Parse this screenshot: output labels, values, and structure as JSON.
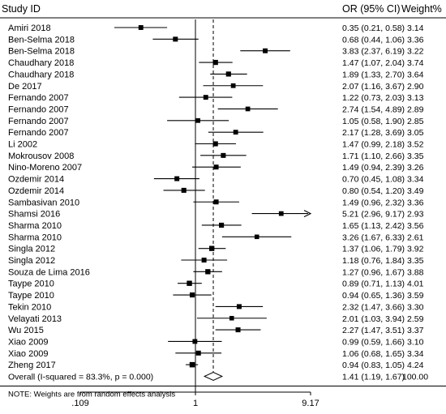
{
  "chart_data": {
    "type": "forest",
    "headers": {
      "study": "Study ID",
      "or": "OR (95% CI)",
      "weight": "Weight%"
    },
    "x_scale": "log",
    "xlim": [
      0.109,
      9.17
    ],
    "x_ticks": [
      {
        "value": 0.109,
        "label": ".109"
      },
      {
        "value": 1,
        "label": "1"
      },
      {
        "value": 9.17,
        "label": "9.17"
      }
    ],
    "null_line": 1,
    "pooled_line": 1.41,
    "studies": [
      {
        "name": "Amiri 2018",
        "or": 0.35,
        "lo": 0.21,
        "hi": 0.58,
        "ci_text": "0.35 (0.21, 0.58)",
        "weight": 3.14,
        "weight_text": "3.14"
      },
      {
        "name": "Ben-Selma 2018",
        "or": 0.68,
        "lo": 0.44,
        "hi": 1.06,
        "ci_text": "0.68 (0.44, 1.06)",
        "weight": 3.36,
        "weight_text": "3.36"
      },
      {
        "name": "Ben-Selma 2018",
        "or": 3.83,
        "lo": 2.37,
        "hi": 6.19,
        "ci_text": "3.83 (2.37, 6.19)",
        "weight": 3.22,
        "weight_text": "3.22"
      },
      {
        "name": "Chaudhary 2018",
        "or": 1.47,
        "lo": 1.07,
        "hi": 2.04,
        "ci_text": "1.47 (1.07, 2.04)",
        "weight": 3.74,
        "weight_text": "3.74"
      },
      {
        "name": "Chaudhary 2018",
        "or": 1.89,
        "lo": 1.33,
        "hi": 2.7,
        "ci_text": "1.89 (1.33, 2.70)",
        "weight": 3.64,
        "weight_text": "3.64"
      },
      {
        "name": "De 2017",
        "or": 2.07,
        "lo": 1.16,
        "hi": 3.67,
        "ci_text": "2.07 (1.16, 3.67)",
        "weight": 2.9,
        "weight_text": "2.90"
      },
      {
        "name": "Fernando 2007",
        "or": 1.22,
        "lo": 0.73,
        "hi": 2.03,
        "ci_text": "1.22 (0.73, 2.03)",
        "weight": 3.13,
        "weight_text": "3.13"
      },
      {
        "name": "Fernando 2007",
        "or": 2.74,
        "lo": 1.54,
        "hi": 4.89,
        "ci_text": "2.74 (1.54, 4.89)",
        "weight": 2.89,
        "weight_text": "2.89"
      },
      {
        "name": "Fernando 2007",
        "or": 1.05,
        "lo": 0.58,
        "hi": 1.9,
        "ci_text": "1.05 (0.58, 1.90)",
        "weight": 2.85,
        "weight_text": "2.85"
      },
      {
        "name": "Fernando 2007",
        "or": 2.17,
        "lo": 1.28,
        "hi": 3.69,
        "ci_text": "2.17 (1.28, 3.69)",
        "weight": 3.05,
        "weight_text": "3.05"
      },
      {
        "name": "Li 2002",
        "or": 1.47,
        "lo": 0.99,
        "hi": 2.18,
        "ci_text": "1.47 (0.99, 2.18)",
        "weight": 3.52,
        "weight_text": "3.52"
      },
      {
        "name": "Mokrousov 2008",
        "or": 1.71,
        "lo": 1.1,
        "hi": 2.66,
        "ci_text": "1.71 (1.10, 2.66)",
        "weight": 3.35,
        "weight_text": "3.35"
      },
      {
        "name": "Nino-Moreno 2007",
        "or": 1.49,
        "lo": 0.94,
        "hi": 2.39,
        "ci_text": "1.49 (0.94, 2.39)",
        "weight": 3.26,
        "weight_text": "3.26"
      },
      {
        "name": "Ozdemir 2014",
        "or": 0.7,
        "lo": 0.45,
        "hi": 1.08,
        "ci_text": "0.70 (0.45, 1.08)",
        "weight": 3.34,
        "weight_text": "3.34"
      },
      {
        "name": "Ozdemir 2014",
        "or": 0.8,
        "lo": 0.54,
        "hi": 1.2,
        "ci_text": "0.80 (0.54, 1.20)",
        "weight": 3.49,
        "weight_text": "3.49"
      },
      {
        "name": "Sambasivan 2010",
        "or": 1.49,
        "lo": 0.96,
        "hi": 2.32,
        "ci_text": "1.49 (0.96, 2.32)",
        "weight": 3.36,
        "weight_text": "3.36"
      },
      {
        "name": "Shamsi 2016",
        "or": 5.21,
        "lo": 2.96,
        "hi": 9.17,
        "ci_text": "5.21 (2.96, 9.17)",
        "weight": 2.93,
        "weight_text": "2.93",
        "arrow": true
      },
      {
        "name": "Sharma 2010",
        "or": 1.65,
        "lo": 1.13,
        "hi": 2.42,
        "ci_text": "1.65 (1.13, 2.42)",
        "weight": 3.56,
        "weight_text": "3.56"
      },
      {
        "name": "Sharma 2010",
        "or": 3.26,
        "lo": 1.67,
        "hi": 6.33,
        "ci_text": "3.26 (1.67, 6.33)",
        "weight": 2.61,
        "weight_text": "2.61"
      },
      {
        "name": "Singla 2012",
        "or": 1.37,
        "lo": 1.06,
        "hi": 1.79,
        "ci_text": "1.37 (1.06, 1.79)",
        "weight": 3.92,
        "weight_text": "3.92"
      },
      {
        "name": "Singla 2012",
        "or": 1.18,
        "lo": 0.76,
        "hi": 1.84,
        "ci_text": "1.18 (0.76, 1.84)",
        "weight": 3.35,
        "weight_text": "3.35"
      },
      {
        "name": "Souza de Lima 2016",
        "or": 1.27,
        "lo": 0.96,
        "hi": 1.67,
        "ci_text": "1.27 (0.96, 1.67)",
        "weight": 3.88,
        "weight_text": "3.88"
      },
      {
        "name": "Taype 2010",
        "or": 0.89,
        "lo": 0.71,
        "hi": 1.13,
        "ci_text": "0.89 (0.71, 1.13)",
        "weight": 4.01,
        "weight_text": "4.01"
      },
      {
        "name": "Taype 2010",
        "or": 0.94,
        "lo": 0.65,
        "hi": 1.36,
        "ci_text": "0.94 (0.65, 1.36)",
        "weight": 3.59,
        "weight_text": "3.59"
      },
      {
        "name": "Tekin 2010",
        "or": 2.32,
        "lo": 1.47,
        "hi": 3.66,
        "ci_text": "2.32 (1.47, 3.66)",
        "weight": 3.3,
        "weight_text": "3.30"
      },
      {
        "name": "Velayati 2013",
        "or": 2.01,
        "lo": 1.03,
        "hi": 3.94,
        "ci_text": "2.01 (1.03, 3.94)",
        "weight": 2.59,
        "weight_text": "2.59"
      },
      {
        "name": "Wu 2015",
        "or": 2.27,
        "lo": 1.47,
        "hi": 3.51,
        "ci_text": "2.27 (1.47, 3.51)",
        "weight": 3.37,
        "weight_text": "3.37"
      },
      {
        "name": "Xiao 2009",
        "or": 0.99,
        "lo": 0.59,
        "hi": 1.66,
        "ci_text": "0.99 (0.59, 1.66)",
        "weight": 3.1,
        "weight_text": "3.10"
      },
      {
        "name": "Xiao 2009",
        "or": 1.06,
        "lo": 0.68,
        "hi": 1.65,
        "ci_text": "1.06 (0.68, 1.65)",
        "weight": 3.34,
        "weight_text": "3.34"
      },
      {
        "name": "Zheng 2017",
        "or": 0.94,
        "lo": 0.83,
        "hi": 1.05,
        "ci_text": "0.94 (0.83, 1.05)",
        "weight": 4.24,
        "weight_text": "4.24"
      }
    ],
    "overall": {
      "label": "Overall  (I-squared = 83.3%, p = 0.000)",
      "or": 1.41,
      "lo": 1.19,
      "hi": 1.67,
      "ci_text": "1.41 (1.19, 1.67)",
      "weight_text": "100.00"
    },
    "note": "NOTE: Weights are from random effects analysis"
  }
}
